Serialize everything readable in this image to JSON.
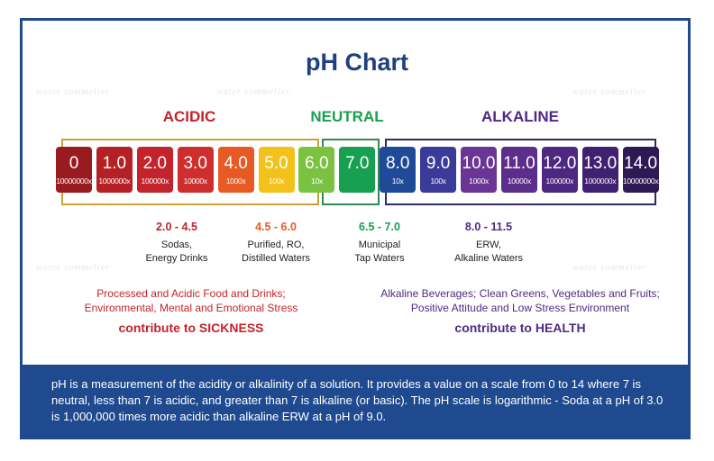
{
  "title": "pH Chart",
  "watermark": "water sommelier",
  "headers": {
    "acidic": "ACIDIC",
    "neutral": "NEUTRAL",
    "alkaline": "ALKALINE"
  },
  "colors": {
    "acidic": "#c3232a",
    "neutral": "#18a050",
    "alkaline": "#4e2a84",
    "title": "#1f3f7f",
    "footer": "#1f4a8f"
  },
  "scale": [
    {
      "ph": "0",
      "mult": "10000000x",
      "color": "#9a1b1f"
    },
    {
      "ph": "1.0",
      "mult": "1000000x",
      "color": "#b52025"
    },
    {
      "ph": "2.0",
      "mult": "100000x",
      "color": "#c3232a"
    },
    {
      "ph": "3.0",
      "mult": "10000x",
      "color": "#cf2e2e"
    },
    {
      "ph": "4.0",
      "mult": "1000x",
      "color": "#e85a24"
    },
    {
      "ph": "5.0",
      "mult": "100x",
      "color": "#f2c21b"
    },
    {
      "ph": "6.0",
      "mult": "10x",
      "color": "#7cc242"
    },
    {
      "ph": "7.0",
      "mult": "",
      "color": "#18a050"
    },
    {
      "ph": "8.0",
      "mult": "10x",
      "color": "#1e4a97"
    },
    {
      "ph": "9.0",
      "mult": "100x",
      "color": "#3a3a99"
    },
    {
      "ph": "10.0",
      "mult": "1000x",
      "color": "#6a3594"
    },
    {
      "ph": "11.0",
      "mult": "10000x",
      "color": "#5c2d8a"
    },
    {
      "ph": "12.0",
      "mult": "100000x",
      "color": "#4e2780"
    },
    {
      "ph": "13.0",
      "mult": "1000000x",
      "color": "#3f2170"
    },
    {
      "ph": "14.0",
      "mult": "10000000x",
      "color": "#2d1a55"
    }
  ],
  "ranges": [
    {
      "range": "2.0 - 4.5",
      "line1": "Sodas,",
      "line2": "Energy Drinks",
      "color": "#c3232a"
    },
    {
      "range": "4.5 - 6.0",
      "line1": "Purified, RO,",
      "line2": "Distilled Waters",
      "color": "#e85a24"
    },
    {
      "range": "6.5 - 7.0",
      "line1": "Municipal",
      "line2": "Tap Waters",
      "color": "#18a050"
    },
    {
      "range": "8.0 - 11.5",
      "line1": "ERW,",
      "line2": "Alkaline Waters",
      "color": "#4e2a84"
    }
  ],
  "effects": {
    "acidic": {
      "line1": "Processed and Acidic Food and Drinks;",
      "line2": "Environmental, Mental and Emotional Stress",
      "conclusion": "contribute to SICKNESS"
    },
    "alkaline": {
      "line1": "Alkaline Beverages; Clean Greens, Vegetables and Fruits;",
      "line2": "Positive Attitude and Low Stress Environment",
      "conclusion": "contribute to HEALTH"
    }
  },
  "footer": "pH is a measurement of the acidity or alkalinity of a solution. It provides a value on a scale from 0 to 14 where 7 is neutral, less than 7 is acidic, and greater than 7 is alkaline (or basic). The pH scale is logarithmic - Soda at a pH of 3.0 is 1,000,000 times more acidic than alkaline ERW at a pH of 9.0."
}
